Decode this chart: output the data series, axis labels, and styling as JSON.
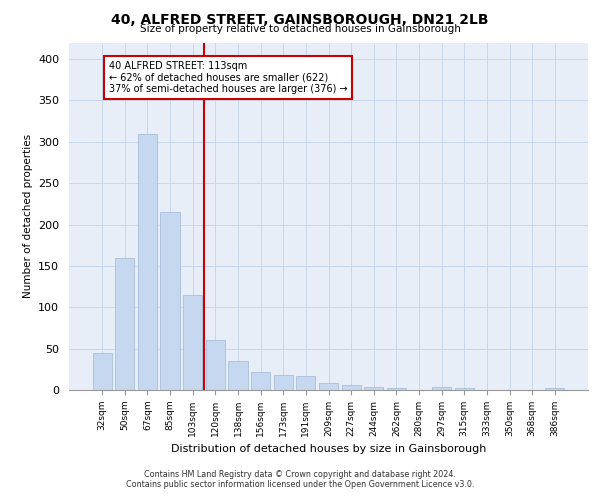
{
  "title": "40, ALFRED STREET, GAINSBOROUGH, DN21 2LB",
  "subtitle": "Size of property relative to detached houses in Gainsborough",
  "xlabel": "Distribution of detached houses by size in Gainsborough",
  "ylabel": "Number of detached properties",
  "categories": [
    "32sqm",
    "50sqm",
    "67sqm",
    "85sqm",
    "103sqm",
    "120sqm",
    "138sqm",
    "156sqm",
    "173sqm",
    "191sqm",
    "209sqm",
    "227sqm",
    "244sqm",
    "262sqm",
    "280sqm",
    "297sqm",
    "315sqm",
    "333sqm",
    "350sqm",
    "368sqm",
    "386sqm"
  ],
  "values": [
    45,
    160,
    310,
    215,
    115,
    60,
    35,
    22,
    18,
    17,
    8,
    6,
    4,
    3,
    0,
    4,
    3,
    0,
    0,
    0,
    3
  ],
  "bar_color": "#c5d8f0",
  "bar_edge_color": "#a0b8d8",
  "grid_color": "#c8d8ec",
  "background_color": "#e8eef8",
  "annotation_box_text": "40 ALFRED STREET: 113sqm\n← 62% of detached houses are smaller (622)\n37% of semi-detached houses are larger (376) →",
  "annotation_box_color": "#cc0000",
  "vline_x": 4.5,
  "vline_color": "#cc0000",
  "ylim": [
    0,
    420
  ],
  "yticks": [
    0,
    50,
    100,
    150,
    200,
    250,
    300,
    350,
    400
  ],
  "footer_line1": "Contains HM Land Registry data © Crown copyright and database right 2024.",
  "footer_line2": "Contains public sector information licensed under the Open Government Licence v3.0."
}
